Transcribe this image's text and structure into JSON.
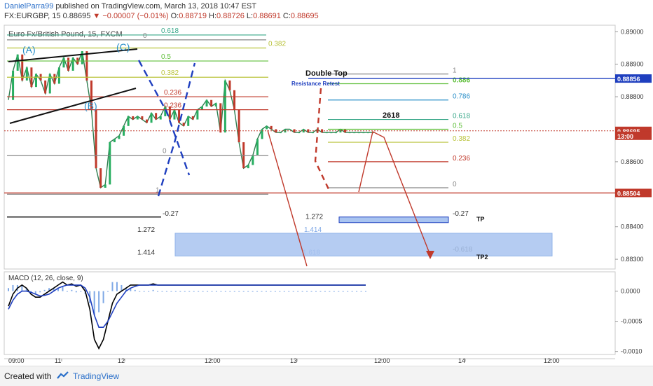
{
  "header": {
    "author": "DanielParra99",
    "published_text": " published on TradingView.com, March 13, 2018 10:47 EST",
    "symbol": "FX:EURGBP, 15",
    "last": "0.88695",
    "change": "−0.00007 (−0.01%)",
    "ohlc": [
      {
        "label": "O:",
        "value": "0.88719"
      },
      {
        "label": "H:",
        "value": "0.88726"
      },
      {
        "label": "L:",
        "value": "0.88691"
      },
      {
        "label": "C:",
        "value": "0.88695"
      }
    ]
  },
  "footer": {
    "created_with": "Created with",
    "brand": "TradingView"
  },
  "colors": {
    "up": "#27ae60",
    "down": "#c0392b",
    "macd": "#000000",
    "signal": "#1f3fbf",
    "hist": "#7fa8e6",
    "fib_blue": "#1f3fbf",
    "last_price": "#c0392b",
    "level_red": "#c0392b",
    "box": "#a9c4f0"
  },
  "chart_data": [
    {
      "type": "line",
      "title": "Euro Fx/British Pound, 15, FXCM",
      "ylim": [
        0.8827,
        0.8902
      ],
      "y_ticks": [
        "0.89000",
        "0.88900",
        "0.88800",
        "0.88600",
        "0.88400",
        "0.88300"
      ],
      "x_ticks": [
        "09:00",
        "11",
        "12",
        "12:00",
        "13",
        "12:00",
        "14",
        "12:00"
      ],
      "price_badges": [
        {
          "label": "0.88856",
          "value": 0.88856,
          "color": "#1f3fbf"
        },
        {
          "label": "0.88695",
          "value": 0.88695,
          "color": "#c0392b"
        },
        {
          "label": "13:00",
          "value": 0.8868,
          "color": "#c0392b"
        },
        {
          "label": "0.88504",
          "value": 0.88504,
          "color": "#c0392b"
        }
      ],
      "close_series": {
        "x": [
          0,
          2,
          4,
          6,
          8,
          10,
          12,
          14,
          16,
          18,
          20,
          22,
          24,
          26,
          28,
          30,
          32,
          34,
          36,
          38,
          40,
          42,
          44,
          46,
          48,
          50,
          52,
          54,
          56,
          58,
          60,
          62,
          64,
          66,
          68,
          70,
          72,
          74,
          76,
          78,
          80,
          82,
          84,
          86,
          88,
          90,
          92,
          94,
          96,
          98,
          100,
          102,
          104,
          106,
          108,
          110,
          112,
          114,
          116,
          118,
          120,
          122,
          124,
          126,
          128,
          130,
          132,
          134,
          136,
          138,
          140,
          142,
          144,
          146,
          148,
          150,
          152,
          154,
          156,
          158
        ],
        "y": [
          0.8879,
          0.8888,
          0.8893,
          0.8885,
          0.8889,
          0.8883,
          0.8887,
          0.8885,
          0.8881,
          0.8887,
          0.8884,
          0.8889,
          0.8892,
          0.8888,
          0.8892,
          0.889,
          0.8894,
          0.8885,
          0.8876,
          0.8858,
          0.8852,
          0.8853,
          0.8866,
          0.8867,
          0.8868,
          0.8871,
          0.8874,
          0.8873,
          0.8874,
          0.8873,
          0.8872,
          0.8875,
          0.8873,
          0.8874,
          0.8877,
          0.8873,
          0.8876,
          0.8872,
          0.8871,
          0.8874,
          0.8873,
          0.8876,
          0.8877,
          0.8879,
          0.8877,
          0.8878,
          0.8869,
          0.8885,
          0.8882,
          0.8876,
          0.8866,
          0.8858,
          0.8859,
          0.8862,
          0.8867,
          0.887,
          0.8871,
          0.887,
          0.8869,
          0.8869,
          0.887,
          0.887,
          0.8869,
          0.8869,
          0.887,
          0.8869,
          0.8869,
          0.887,
          0.8869,
          0.8869,
          0.8869,
          0.8869,
          0.887,
          0.8869,
          0.8869,
          0.8869,
          0.8869,
          0.8869,
          0.8869,
          0.8869
        ]
      },
      "wave_labels": [
        "(A)",
        "(B)",
        "(C)"
      ],
      "left_fib": [
        {
          "label": "0.618",
          "value": 0.8899
        },
        {
          "label": "0",
          "value": 0.88975
        },
        {
          "label": "0.382",
          "value": 0.8895
        },
        {
          "label": "0.5",
          "value": 0.8891
        },
        {
          "label": "0.382",
          "value": 0.8886
        },
        {
          "label": "0.236",
          "value": 0.888
        },
        {
          "label": "0.236",
          "value": 0.8876
        },
        {
          "label": "0",
          "value": 0.8862
        },
        {
          "label": "1",
          "value": 0.885
        }
      ],
      "right_fib": [
        {
          "label": "1",
          "value": 0.8887
        },
        {
          "label": "0.886",
          "value": 0.8884
        },
        {
          "label": "0.786",
          "value": 0.8879
        },
        {
          "label": "0.618",
          "value": 0.8873
        },
        {
          "label": "0.5",
          "value": 0.887
        },
        {
          "label": "0.382",
          "value": 0.8866
        },
        {
          "label": "0.236",
          "value": 0.886
        },
        {
          "label": "0",
          "value": 0.8852
        }
      ],
      "extensions": [
        {
          "label": "-0.27",
          "value": 0.8843
        },
        {
          "label": "1.272",
          "value": 0.8842
        },
        {
          "label": "1.272",
          "value": 0.8838
        },
        {
          "label": "1.414",
          "value": 0.8838
        },
        {
          "label": "1.414",
          "value": 0.8831
        },
        {
          "label": "1.618",
          "value": 0.8831
        },
        {
          "label": "-0.27",
          "value": 0.8843
        },
        {
          "label": "-0.618",
          "value": 0.8832
        }
      ],
      "annotations": [
        {
          "label": "Double Top"
        },
        {
          "label": "Resistance Retest"
        },
        {
          "label": "2618"
        },
        {
          "label": "TP"
        },
        {
          "label": "TP2"
        }
      ]
    },
    {
      "type": "line",
      "title": "MACD (12, 26, close, 9)",
      "ylim": [
        -0.00105,
        0.00032
      ],
      "y_ticks": [
        "0.0000",
        "-0.0005",
        "-0.0010"
      ],
      "series": [
        {
          "values": [
            -0.00025,
            -5e-05,
            5e-05,
            0.0001,
            5e-05,
            -5e-05,
            -0.0001,
            -0.0001,
            -5e-05,
            0.0,
            5e-05,
            0.0001,
            0.00015,
            0.0001,
            0.00012,
            8e-05,
            0.0001,
            0.0,
            -0.0003,
            -0.0008,
            -0.00095,
            -0.0008,
            -0.0005,
            -0.0002,
            -5e-05,
            0.0,
            5e-05,
            0.0001,
            0.0001,
            0.0001,
            0.0001,
            0.0001,
            0.00012,
            0.0001,
            0.0001,
            0.0001,
            0.0001,
            0.0001,
            0.0001,
            0.0001,
            0.0001,
            0.0001,
            0.0001,
            0.0001,
            0.0001,
            0.0001,
            0.0001,
            0.0001,
            0.0001,
            0.0001,
            0.0001,
            0.0001,
            0.0001,
            0.0001,
            0.0001,
            0.0001,
            0.0001,
            0.0001,
            0.0001,
            0.0001,
            0.0001,
            0.0001,
            0.0001,
            0.0001,
            0.0001,
            0.0001,
            0.0001,
            0.0001,
            0.0001,
            0.0001,
            0.0001,
            0.0001,
            0.0001,
            0.0001,
            0.0001,
            0.0001,
            0.0001,
            0.0001,
            0.0001,
            0.0001
          ]
        },
        {
          "values": [
            -0.0003,
            -0.00015,
            -5e-05,
            0.0,
            0.0,
            -2e-05,
            -5e-05,
            -8e-05,
            -7e-05,
            -5e-05,
            0.0,
            5e-05,
            8e-05,
            0.0001,
            0.0001,
            0.0001,
            0.0001,
            5e-05,
            -0.0001,
            -0.0004,
            -0.0006,
            -0.0006,
            -0.0005,
            -0.00035,
            -0.0002,
            -0.0001,
            0.0,
            5e-05,
            8e-05,
            0.0001,
            0.0001,
            0.0001,
            0.0001,
            0.0001,
            0.0001,
            0.0001,
            0.0001,
            0.0001,
            0.0001,
            0.0001,
            0.0001,
            0.0001,
            0.0001,
            0.0001,
            0.0001,
            0.0001,
            0.0001,
            0.0001,
            0.0001,
            0.0001,
            0.0001,
            0.0001,
            0.0001,
            0.0001,
            0.0001,
            0.0001,
            0.0001,
            0.0001,
            0.0001,
            0.0001,
            0.0001,
            0.0001,
            0.0001,
            0.0001,
            0.0001,
            0.0001,
            0.0001,
            0.0001,
            0.0001,
            0.0001,
            0.0001,
            0.0001,
            0.0001,
            0.0001,
            0.0001,
            0.0001,
            0.0001,
            0.0001,
            0.0001,
            0.0001
          ]
        }
      ]
    }
  ]
}
